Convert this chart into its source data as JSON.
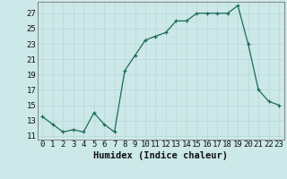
{
  "x": [
    0,
    1,
    2,
    3,
    4,
    5,
    6,
    7,
    8,
    9,
    10,
    11,
    12,
    13,
    14,
    15,
    16,
    17,
    18,
    19,
    20,
    21,
    22,
    23
  ],
  "y": [
    13.5,
    12.5,
    11.5,
    11.8,
    11.5,
    14.0,
    12.5,
    11.5,
    19.5,
    21.5,
    23.5,
    24.0,
    24.5,
    26.0,
    26.0,
    27.0,
    27.0,
    27.0,
    27.0,
    28.0,
    23.0,
    17.0,
    15.5,
    15.0
  ],
  "xlabel": "Humidex (Indice chaleur)",
  "line_color": "#1a6b5a",
  "marker": "+",
  "bg_color": "#cce8e8",
  "grid_major_color": "#b8d8d8",
  "grid_minor_color": "#c8e2e2",
  "xlim": [
    -0.5,
    23.5
  ],
  "ylim": [
    10.5,
    28.5
  ],
  "yticks": [
    11,
    13,
    15,
    17,
    19,
    21,
    23,
    25,
    27
  ],
  "xticks": [
    0,
    1,
    2,
    3,
    4,
    5,
    6,
    7,
    8,
    9,
    10,
    11,
    12,
    13,
    14,
    15,
    16,
    17,
    18,
    19,
    20,
    21,
    22,
    23
  ],
  "tick_fontsize": 6.5,
  "xlabel_fontsize": 7.5
}
